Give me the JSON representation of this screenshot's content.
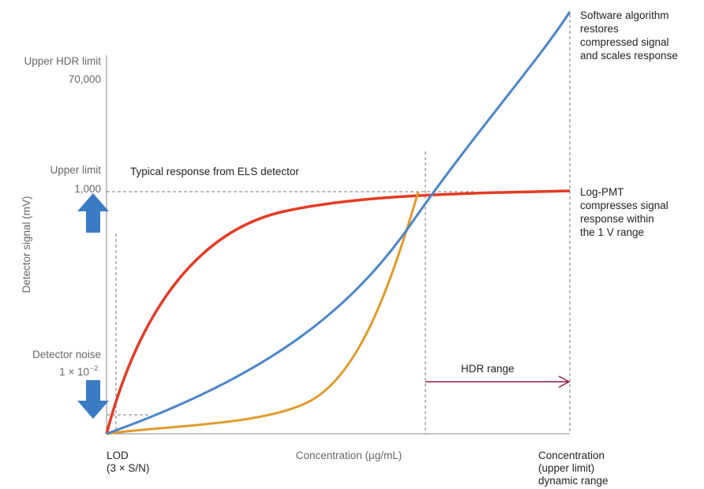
{
  "y_axis": {
    "title": "Detector signal (mV)",
    "upper_hdr_limit": {
      "label": "Upper HDR limit",
      "value": "70,000"
    },
    "upper_limit": {
      "label": "Upper limit",
      "value": "1,000"
    },
    "detector_noise": {
      "label": "Detector noise",
      "value": "1 × 10",
      "exponent": "−2"
    }
  },
  "x_axis": {
    "title": "Concentration (µg/mL)",
    "lod": [
      "LOD",
      "(3 × S/N)"
    ],
    "upper": [
      "Concentration",
      "(upper limit)",
      "dynamic range"
    ]
  },
  "annotations": {
    "typical": "Typical response from ELS detector",
    "software": [
      "Software algorithm",
      "restores",
      "compressed signal",
      "and scales response"
    ],
    "log_pmt": [
      "Log-PMT",
      "compresses signal",
      "response within",
      "the 1 V range"
    ],
    "hdr_range": "HDR range"
  }
}
